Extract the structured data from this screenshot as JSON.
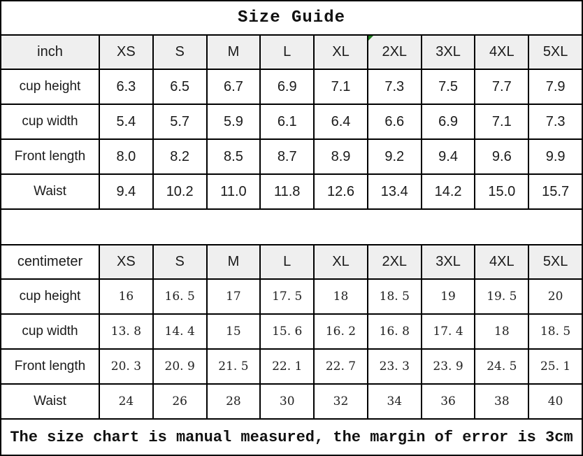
{
  "title": "Size Guide",
  "footer_note": "The size chart is manual measured, the margin of error is 3cm",
  "colors": {
    "header_bg": "#efefef",
    "grid_line": "#000000",
    "flag_green": "#1e7b1e",
    "text": "#1a1a1a"
  },
  "sizes": [
    "XS",
    "S",
    "M",
    "L",
    "XL",
    "2XL",
    "3XL",
    "4XL",
    "5XL"
  ],
  "inch_table": {
    "unit_label": "inch",
    "flagged_size": "2XL",
    "rows": [
      {
        "label": "cup height",
        "values": [
          "6.3",
          "6.5",
          "6.7",
          "6.9",
          "7.1",
          "7.3",
          "7.5",
          "7.7",
          "7.9"
        ]
      },
      {
        "label": "cup width",
        "values": [
          "5.4",
          "5.7",
          "5.9",
          "6.1",
          "6.4",
          "6.6",
          "6.9",
          "7.1",
          "7.3"
        ]
      },
      {
        "label": "Front length",
        "values": [
          "8.0",
          "8.2",
          "8.5",
          "8.7",
          "8.9",
          "9.2",
          "9.4",
          "9.6",
          "9.9"
        ]
      },
      {
        "label": "Waist",
        "values": [
          "9.4",
          "10.2",
          "11.0",
          "11.8",
          "12.6",
          "13.4",
          "14.2",
          "15.0",
          "15.7"
        ]
      }
    ]
  },
  "cm_table": {
    "unit_label": "centimeter",
    "rows": [
      {
        "label": "cup height",
        "values": [
          "16",
          "16. 5",
          "17",
          "17. 5",
          "18",
          "18. 5",
          "19",
          "19. 5",
          "20"
        ]
      },
      {
        "label": "cup width",
        "values": [
          "13. 8",
          "14. 4",
          "15",
          "15. 6",
          "16. 2",
          "16. 8",
          "17. 4",
          "18",
          "18. 5"
        ]
      },
      {
        "label": "Front length",
        "values": [
          "20. 3",
          "20. 9",
          "21. 5",
          "22. 1",
          "22. 7",
          "23. 3",
          "23. 9",
          "24. 5",
          "25. 1"
        ]
      },
      {
        "label": "Waist",
        "values": [
          "24",
          "26",
          "28",
          "30",
          "32",
          "34",
          "36",
          "38",
          "40"
        ]
      }
    ]
  }
}
